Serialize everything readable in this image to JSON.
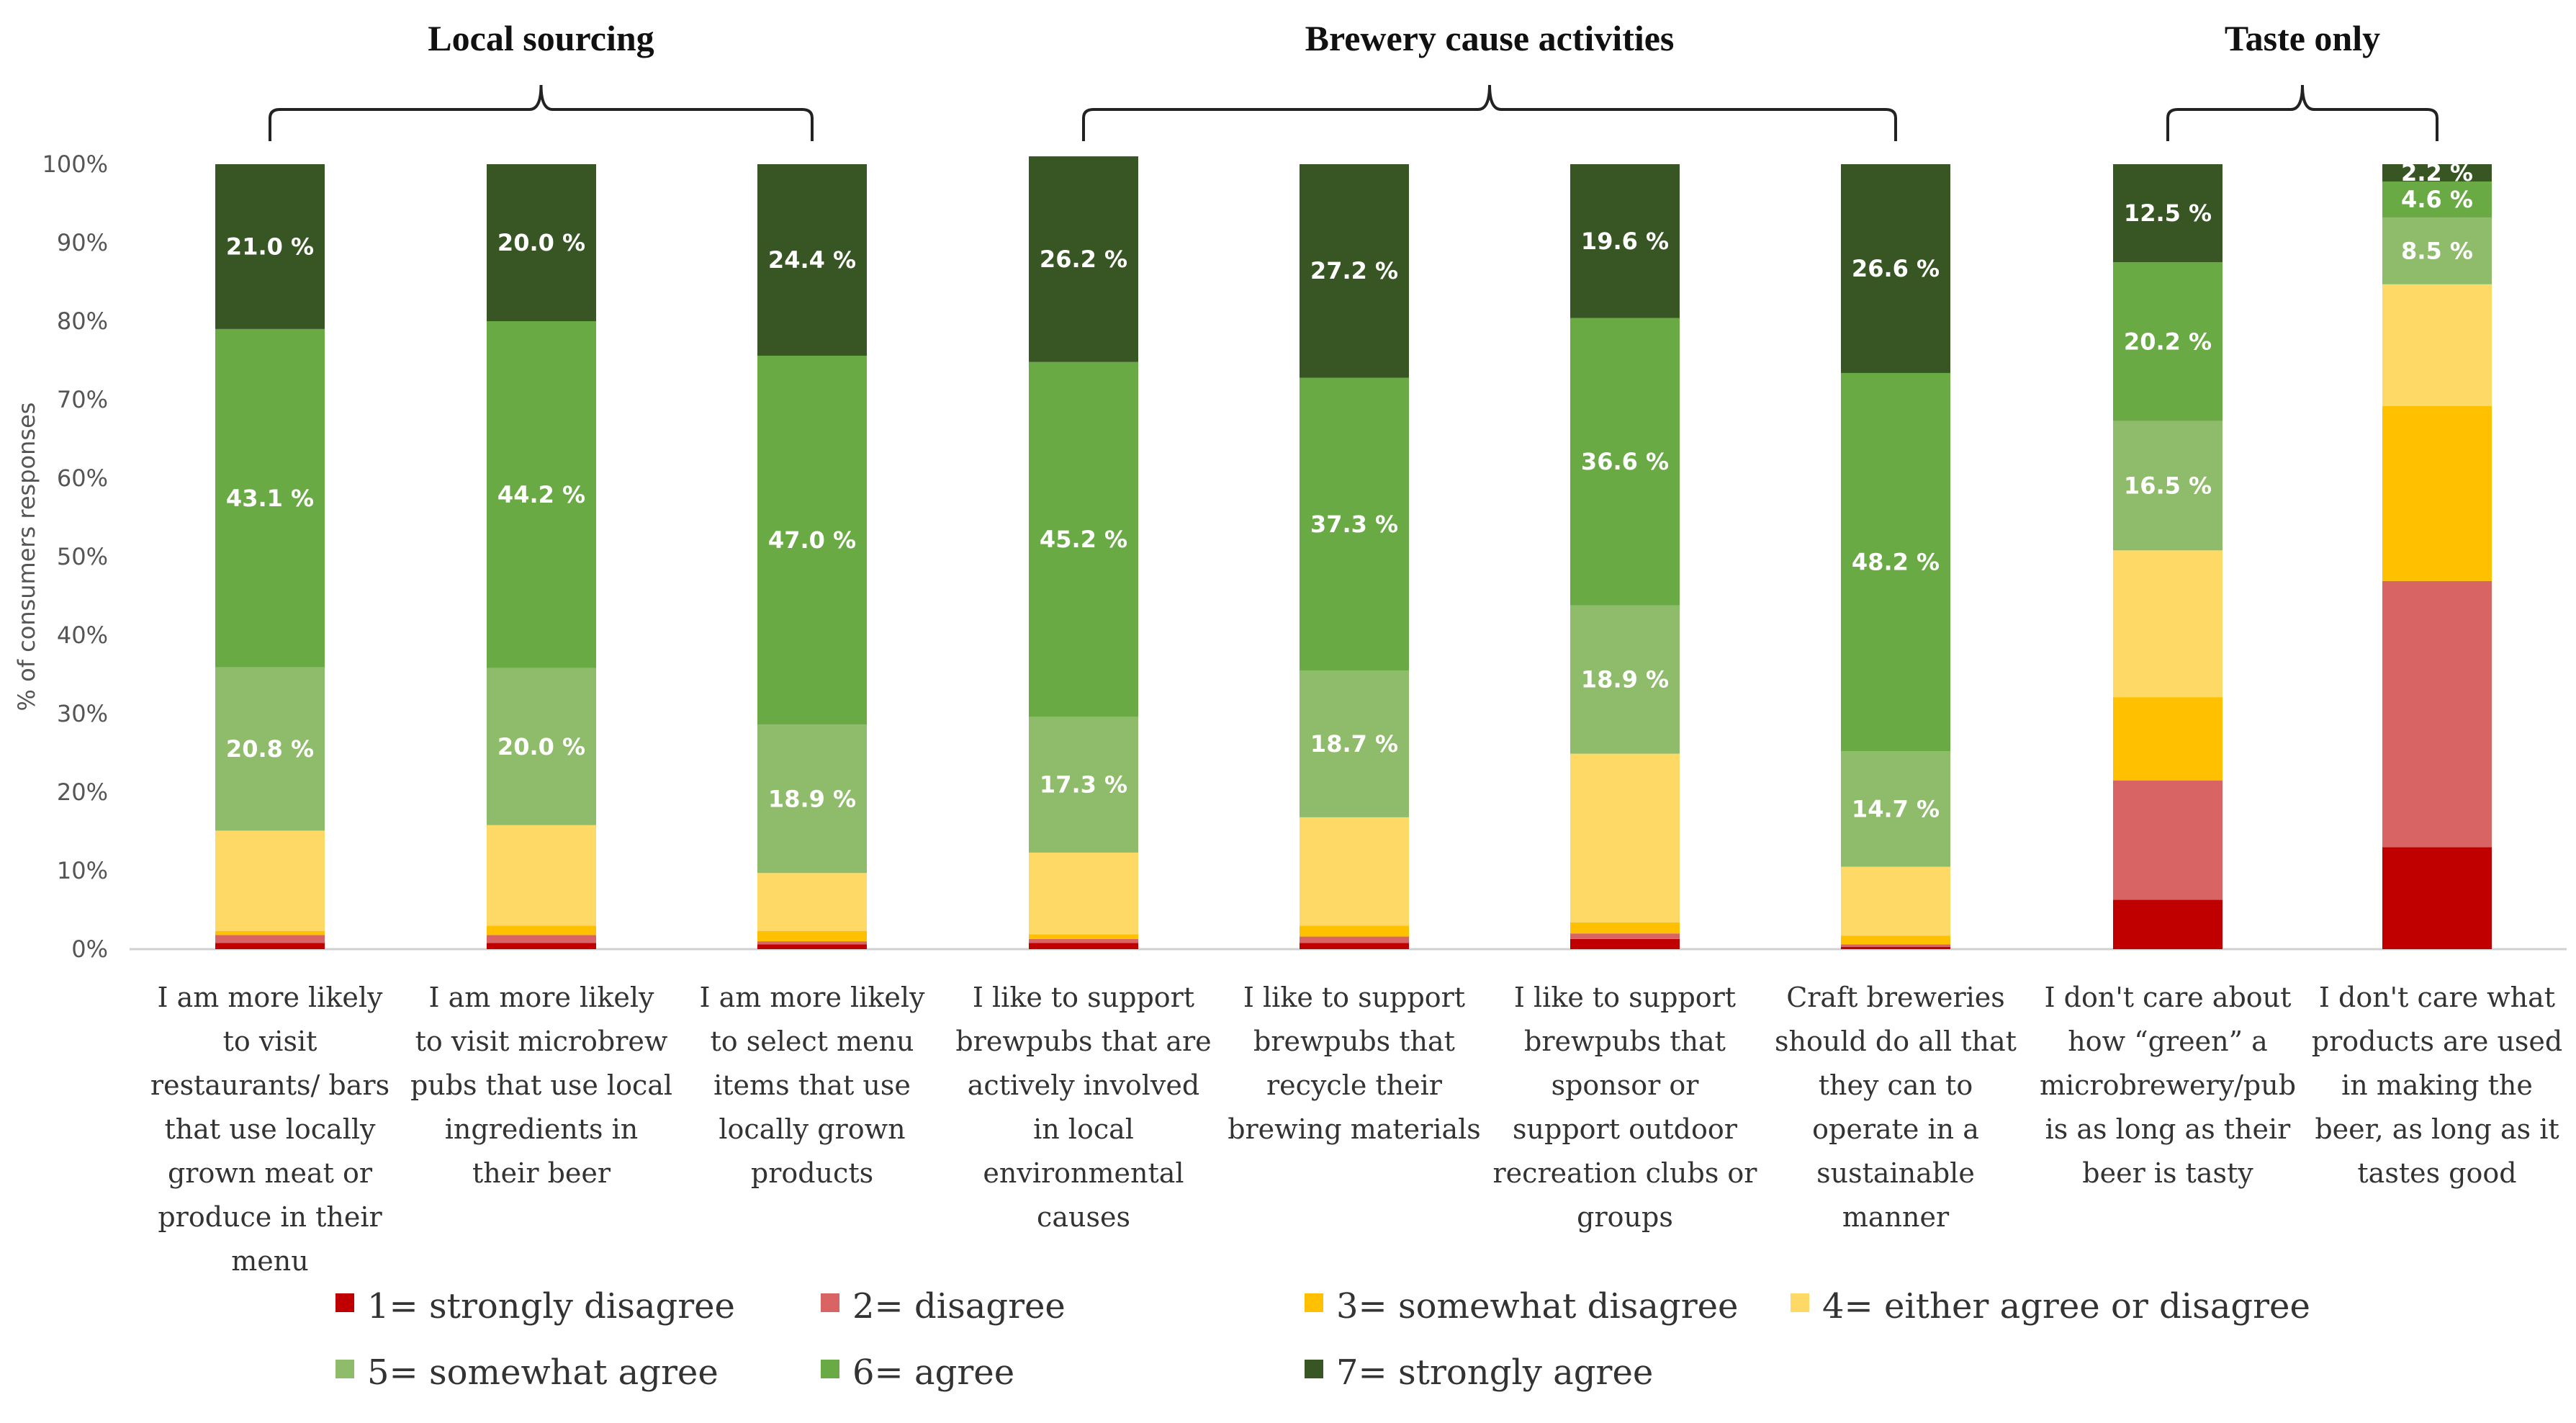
{
  "chart_data": {
    "type": "bar",
    "stacked": true,
    "title": "",
    "ylabel": "% of consumers responses",
    "ylim": [
      0,
      100
    ],
    "yticks": [
      "0%",
      "10%",
      "20%",
      "30%",
      "40%",
      "50%",
      "60%",
      "70%",
      "80%",
      "90%",
      "100%"
    ],
    "groups": [
      {
        "label": "Local sourcing",
        "from": 0,
        "to": 2
      },
      {
        "label": "Brewery cause activities",
        "from": 3,
        "to": 6
      },
      {
        "label": "Taste only",
        "from": 7,
        "to": 8
      }
    ],
    "categories": [
      [
        "I am more likely",
        "to visit",
        "restaurants/ bars",
        "that use locally",
        "grown meat or",
        "produce in their",
        "menu"
      ],
      [
        "I am more likely",
        "to visit microbrew",
        "pubs that use local",
        "ingredients in",
        "their beer"
      ],
      [
        "I am more likely",
        "to select menu",
        "items that use",
        "locally grown",
        "products"
      ],
      [
        "I like to support",
        "brewpubs that are",
        "actively involved",
        "in local",
        "environmental",
        "causes"
      ],
      [
        "I like to support",
        "brewpubs that",
        "recycle their",
        "brewing materials"
      ],
      [
        "I like to support",
        "brewpubs that",
        "sponsor or",
        "support outdoor",
        "recreation clubs or",
        "groups"
      ],
      [
        "Craft breweries",
        "should do all that",
        "they can to",
        "operate in a",
        "sustainable",
        "manner"
      ],
      [
        "I don't  care about",
        "how “green” a",
        "microbrewery/pub",
        "is as long  as their",
        "beer is tasty"
      ],
      [
        "I don't  care what",
        "products  are used",
        "in making the",
        "beer, as long as it",
        "tastes  good"
      ]
    ],
    "series": [
      {
        "name": "1= strongly disagree",
        "color": "#c00000",
        "values": [
          0.8,
          0.8,
          0.6,
          0.8,
          0.8,
          1.3,
          0.3,
          6.3,
          13.0
        ]
      },
      {
        "name": "2= disagree",
        "color": "#d96464",
        "values": [
          1.0,
          1.0,
          0.4,
          0.5,
          0.8,
          0.7,
          0.3,
          15.2,
          33.9
        ]
      },
      {
        "name": "3= somewhat disagree",
        "color": "#ffc000",
        "values": [
          0.5,
          1.2,
          1.3,
          0.6,
          1.4,
          1.4,
          1.1,
          10.6,
          22.3
        ]
      },
      {
        "name": "4= either agree or disagree",
        "color": "#ffd966",
        "values": [
          12.8,
          12.8,
          7.4,
          10.4,
          13.8,
          21.5,
          8.8,
          18.7,
          15.5
        ]
      },
      {
        "name": "5= somewhat agree",
        "color": "#8fbc6a",
        "values": [
          20.8,
          20.0,
          18.9,
          17.3,
          18.7,
          18.9,
          14.7,
          16.5,
          8.5
        ]
      },
      {
        "name": "6= agree",
        "color": "#6aaa45",
        "values": [
          43.1,
          44.2,
          47.0,
          45.2,
          37.3,
          36.6,
          48.2,
          20.2,
          4.6
        ]
      },
      {
        "name": "7= strongly agree",
        "color": "#375623",
        "values": [
          21.0,
          20.0,
          24.4,
          26.2,
          27.2,
          19.6,
          26.6,
          12.5,
          2.2
        ]
      }
    ],
    "data_labels": [
      {
        "series": 4,
        "bar": 0,
        "text": "20.8 %"
      },
      {
        "series": 5,
        "bar": 0,
        "text": "43.1 %"
      },
      {
        "series": 6,
        "bar": 0,
        "text": "21.0 %"
      },
      {
        "series": 4,
        "bar": 1,
        "text": "20.0 %"
      },
      {
        "series": 5,
        "bar": 1,
        "text": "44.2 %"
      },
      {
        "series": 6,
        "bar": 1,
        "text": "20.0 %"
      },
      {
        "series": 4,
        "bar": 2,
        "text": "18.9 %"
      },
      {
        "series": 5,
        "bar": 2,
        "text": "47.0 %"
      },
      {
        "series": 6,
        "bar": 2,
        "text": "24.4 %"
      },
      {
        "series": 4,
        "bar": 3,
        "text": "17.3 %"
      },
      {
        "series": 5,
        "bar": 3,
        "text": "45.2 %"
      },
      {
        "series": 6,
        "bar": 3,
        "text": "26.2 %"
      },
      {
        "series": 4,
        "bar": 4,
        "text": "18.7 %"
      },
      {
        "series": 5,
        "bar": 4,
        "text": "37.3 %"
      },
      {
        "series": 6,
        "bar": 4,
        "text": "27.2 %"
      },
      {
        "series": 4,
        "bar": 5,
        "text": "18.9 %"
      },
      {
        "series": 5,
        "bar": 5,
        "text": "36.6 %"
      },
      {
        "series": 6,
        "bar": 5,
        "text": "19.6 %"
      },
      {
        "series": 4,
        "bar": 6,
        "text": "14.7 %"
      },
      {
        "series": 5,
        "bar": 6,
        "text": "48.2 %"
      },
      {
        "series": 6,
        "bar": 6,
        "text": "26.6 %"
      },
      {
        "series": 4,
        "bar": 7,
        "text": "16.5 %"
      },
      {
        "series": 5,
        "bar": 7,
        "text": "20.2 %"
      },
      {
        "series": 6,
        "bar": 7,
        "text": "12.5 %"
      },
      {
        "series": 4,
        "bar": 8,
        "text": "8.5 %"
      },
      {
        "series": 5,
        "bar": 8,
        "text": "4.6 %"
      },
      {
        "series": 6,
        "bar": 8,
        "text": "2.2 %"
      }
    ],
    "legend": {
      "position": "bottom",
      "columns": 4
    }
  }
}
